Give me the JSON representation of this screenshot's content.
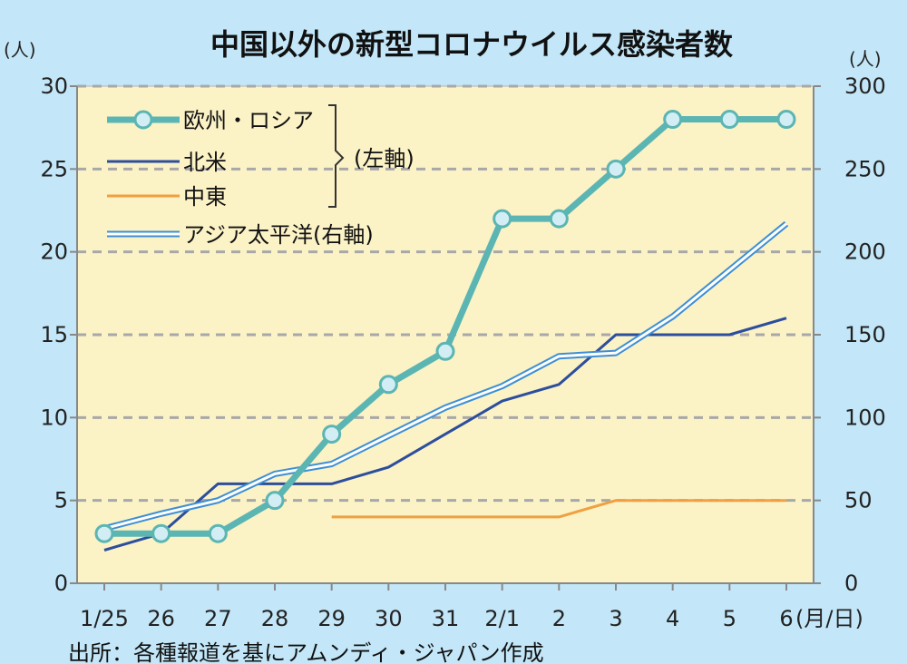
{
  "chart_data": {
    "type": "line",
    "title": "中国以外の新型コロナウイルス感染者数",
    "left_unit": "(人)",
    "right_unit": "(人)",
    "x_unit": "(月/日)",
    "source": "出所：各種報道を基にアムンディ・ジャパン作成",
    "x_ticks": [
      "1/25",
      "26",
      "27",
      "28",
      "29",
      "30",
      "31",
      "2/1",
      "2",
      "3",
      "4",
      "5",
      "6"
    ],
    "y_left": {
      "min": 0,
      "max": 30,
      "ticks": [
        0,
        5,
        10,
        15,
        20,
        25,
        30
      ]
    },
    "y_right": {
      "min": 0,
      "max": 300,
      "ticks": [
        0,
        50,
        100,
        150,
        200,
        250,
        300
      ]
    },
    "grid": true,
    "legend_placement": "top-left",
    "legend_bracket_label": "(左軸)",
    "series": [
      {
        "name": "欧州・ロシア",
        "axis": "left",
        "style": "markers",
        "color": "#5bb5b3",
        "values": [
          3,
          3,
          3,
          5,
          9,
          12,
          14,
          22,
          22,
          25,
          28,
          28,
          28
        ]
      },
      {
        "name": "北米",
        "axis": "left",
        "style": "solid",
        "color": "#2c4e9c",
        "values": [
          2,
          3,
          6,
          6,
          6,
          7,
          9,
          11,
          12,
          15,
          15,
          15,
          16
        ]
      },
      {
        "name": "中東",
        "axis": "left",
        "style": "solid",
        "color": "#f0a040",
        "values": [
          null,
          null,
          null,
          null,
          4,
          4,
          4,
          4,
          4,
          5,
          5,
          5,
          5
        ]
      },
      {
        "name": "アジア太平洋(右軸)",
        "axis": "right",
        "style": "double",
        "color": "#3e8fd4",
        "values": [
          33,
          42,
          50,
          66,
          72,
          89,
          106,
          119,
          137,
          139,
          161,
          189,
          217
        ]
      }
    ]
  }
}
